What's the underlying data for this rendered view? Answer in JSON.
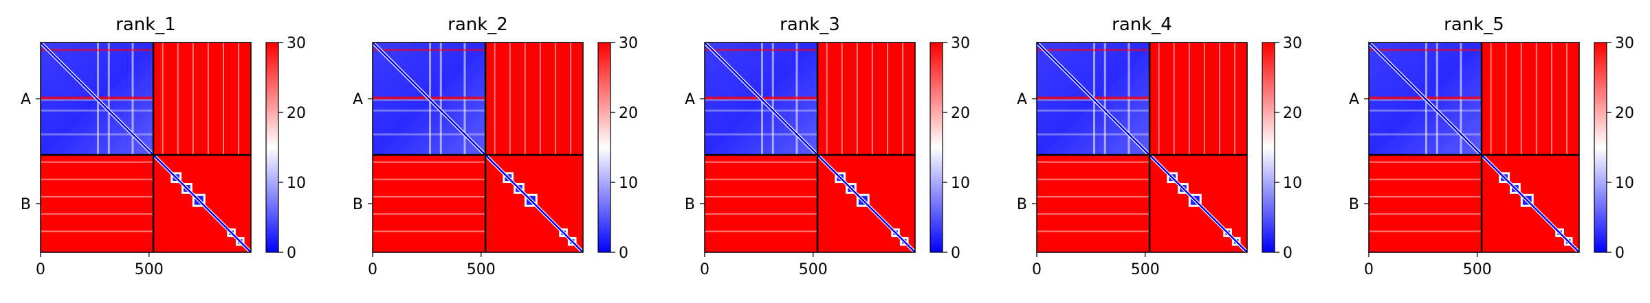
{
  "figure": {
    "description_free": true
  },
  "chart_data": [
    {
      "type": "heatmap",
      "title": "rank_1",
      "xlabel": "",
      "ylabel": "",
      "chains": [
        "A",
        "B"
      ],
      "chain_boundary": 520,
      "total_length": 970,
      "xticks": [
        0,
        500
      ],
      "xlim": [
        0,
        970
      ],
      "colorbar": {
        "min": 0,
        "max": 30,
        "ticks": [
          0,
          10,
          20,
          30
        ],
        "colormap": "bwr"
      },
      "diag_blocks": [
        [
          600,
          650
        ],
        [
          650,
          700
        ],
        [
          700,
          760
        ],
        [
          860,
          900
        ],
        [
          900,
          940
        ]
      ],
      "bands": [
        260,
        310,
        420
      ]
    },
    {
      "type": "heatmap",
      "title": "rank_2",
      "xlabel": "",
      "ylabel": "",
      "chains": [
        "A",
        "B"
      ],
      "chain_boundary": 520,
      "total_length": 970,
      "xticks": [
        0,
        500
      ],
      "xlim": [
        0,
        970
      ],
      "colorbar": {
        "min": 0,
        "max": 30,
        "ticks": [
          0,
          10,
          20,
          30
        ],
        "colormap": "bwr"
      },
      "diag_blocks": [
        [
          600,
          650
        ],
        [
          650,
          700
        ],
        [
          700,
          760
        ],
        [
          860,
          900
        ],
        [
          900,
          940
        ]
      ],
      "bands": [
        260,
        310,
        420
      ]
    },
    {
      "type": "heatmap",
      "title": "rank_3",
      "xlabel": "",
      "ylabel": "",
      "chains": [
        "A",
        "B"
      ],
      "chain_boundary": 520,
      "total_length": 970,
      "xticks": [
        0,
        500
      ],
      "xlim": [
        0,
        970
      ],
      "colorbar": {
        "min": 0,
        "max": 30,
        "ticks": [
          0,
          10,
          20,
          30
        ],
        "colormap": "bwr"
      },
      "diag_blocks": [
        [
          600,
          650
        ],
        [
          650,
          700
        ],
        [
          700,
          760
        ],
        [
          860,
          900
        ],
        [
          900,
          940
        ]
      ],
      "bands": [
        260,
        310,
        420
      ]
    },
    {
      "type": "heatmap",
      "title": "rank_4",
      "xlabel": "",
      "ylabel": "",
      "chains": [
        "A",
        "B"
      ],
      "chain_boundary": 520,
      "total_length": 970,
      "xticks": [
        0,
        500
      ],
      "xlim": [
        0,
        970
      ],
      "colorbar": {
        "min": 0,
        "max": 30,
        "ticks": [
          0,
          10,
          20,
          30
        ],
        "colormap": "bwr"
      },
      "diag_blocks": [
        [
          600,
          650
        ],
        [
          650,
          700
        ],
        [
          700,
          760
        ],
        [
          860,
          900
        ],
        [
          900,
          940
        ]
      ],
      "bands": [
        260,
        310,
        420
      ]
    },
    {
      "type": "heatmap",
      "title": "rank_5",
      "xlabel": "",
      "ylabel": "",
      "chains": [
        "A",
        "B"
      ],
      "chain_boundary": 520,
      "total_length": 970,
      "xticks": [
        0,
        500
      ],
      "xlim": [
        0,
        970
      ],
      "colorbar": {
        "min": 0,
        "max": 30,
        "ticks": [
          0,
          10,
          20,
          30
        ],
        "colormap": "bwr"
      },
      "diag_blocks": [
        [
          600,
          650
        ],
        [
          650,
          700
        ],
        [
          700,
          760
        ],
        [
          860,
          900
        ],
        [
          900,
          940
        ]
      ],
      "bands": [
        260,
        310,
        420
      ]
    }
  ],
  "colors": {
    "low": "#0000ff",
    "mid": "#ffffff",
    "high": "#ff0000",
    "boundary": "#000000"
  }
}
